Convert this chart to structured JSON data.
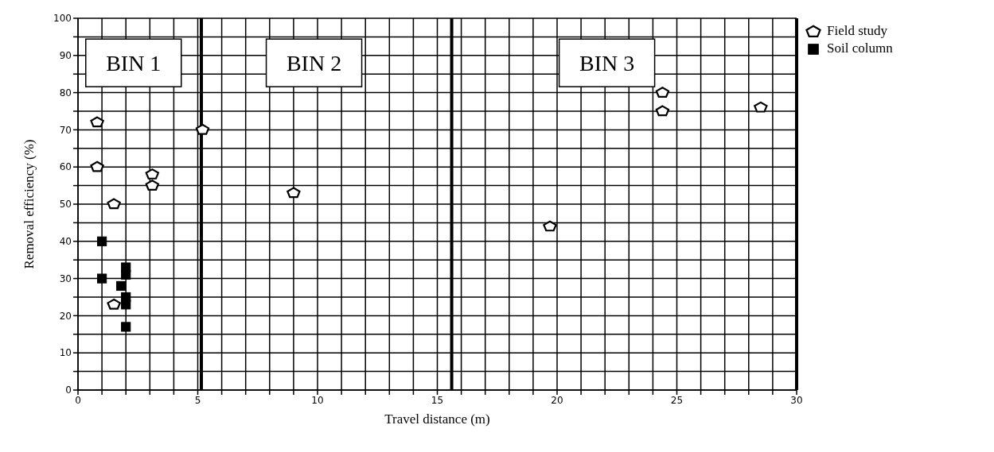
{
  "chart_data": {
    "type": "scatter",
    "xlabel": "Travel distance (m)",
    "ylabel": "Removal efficiency (%)",
    "xlim": [
      0,
      30
    ],
    "ylim": [
      0,
      100
    ],
    "xticks": [
      0,
      {
        "value": 1,
        "label": null
      },
      {
        "value": 2,
        "label": null
      },
      {
        "value": 3,
        "label": null
      },
      {
        "value": 4,
        "label": null
      },
      5,
      {
        "value": 6,
        "label": null
      },
      {
        "value": 7,
        "label": null
      },
      {
        "value": 8,
        "label": null
      },
      {
        "value": 9,
        "label": null
      },
      10,
      {
        "value": 11,
        "label": null
      },
      {
        "value": 12,
        "label": null
      },
      {
        "value": 13,
        "label": null
      },
      {
        "value": 14,
        "label": null
      },
      15,
      {
        "value": 16,
        "label": null
      },
      {
        "value": 17,
        "label": null
      },
      {
        "value": 18,
        "label": null
      },
      {
        "value": 19,
        "label": null
      },
      20,
      {
        "value": 21,
        "label": null
      },
      {
        "value": 22,
        "label": null
      },
      {
        "value": 23,
        "label": null
      },
      {
        "value": 24,
        "label": null
      },
      25,
      {
        "value": 26,
        "label": null
      },
      {
        "value": 27,
        "label": null
      },
      {
        "value": 28,
        "label": null
      },
      {
        "value": 29,
        "label": null
      },
      30
    ],
    "yticks": [
      0,
      {
        "value": 5,
        "label": null
      },
      10,
      {
        "value": 15,
        "label": null
      },
      20,
      {
        "value": 25,
        "label": null
      },
      30,
      {
        "value": 35,
        "label": null
      },
      40,
      {
        "value": 45,
        "label": null
      },
      50,
      {
        "value": 55,
        "label": null
      },
      60,
      {
        "value": 65,
        "label": null
      },
      70,
      {
        "value": 75,
        "label": null
      },
      80,
      {
        "value": 85,
        "label": null
      },
      90,
      {
        "value": 95,
        "label": null
      },
      100
    ],
    "grid": true,
    "legend": "top right",
    "series": [
      {
        "name": "Field study",
        "color": "#000000",
        "x": [
          0.8,
          0.8,
          1.5,
          1.5,
          3.1,
          3.1,
          5.2,
          9,
          19.7,
          24.4,
          24.4,
          28.5
        ],
        "values": [
          72,
          60,
          50,
          23,
          58,
          55,
          70,
          53,
          44,
          80,
          75,
          76
        ]
      },
      {
        "name": "Soil column",
        "color": "#000000",
        "marker": "square",
        "x": [
          1,
          1,
          1.8,
          2,
          2,
          2,
          2,
          2
        ],
        "values": [
          40,
          30,
          28,
          33,
          31,
          25,
          23,
          17
        ]
      }
    ],
    "ref_lines": [
      {
        "axis": "x",
        "value": 5.15,
        "color": "#000000"
      },
      {
        "axis": "x",
        "value": 15.6,
        "color": "#000000"
      },
      {
        "axis": "x",
        "value": 30,
        "color": "#000000"
      }
    ],
    "annotations": [
      "BIN 1",
      "BIN 2",
      "BIN 3"
    ]
  }
}
